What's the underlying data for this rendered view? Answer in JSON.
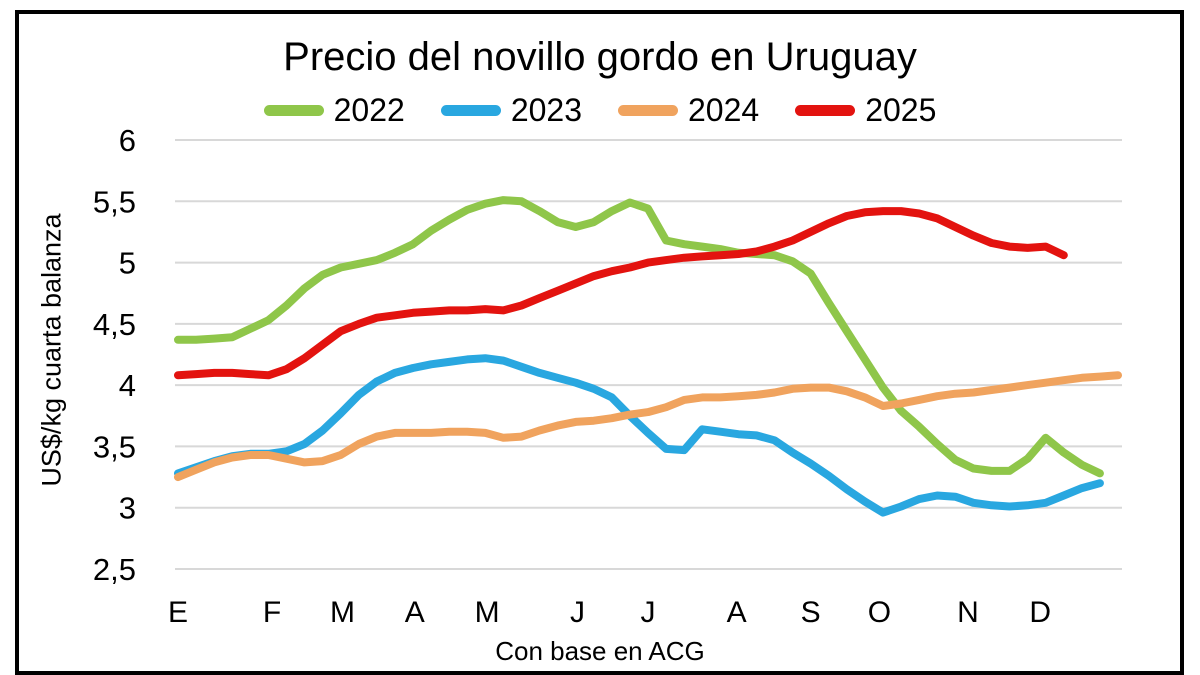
{
  "colors": {
    "background": "#ffffff",
    "frame_border": "#000000",
    "gridline": "#d8d8d8",
    "text": "#000000"
  },
  "chart_data": {
    "type": "line",
    "title": "Precio del novillo gordo en Uruguay",
    "ylabel": "US$/kg cuarta balanza",
    "xlabel": "Con base en ACG",
    "legend_position": "top",
    "grid": true,
    "x_unit": "week_of_year",
    "ylim": [
      2.5,
      6
    ],
    "y_ticks": [
      {
        "label": "6",
        "value": 6
      },
      {
        "label": "5,5",
        "value": 5.5
      },
      {
        "label": "5",
        "value": 5
      },
      {
        "label": "4,5",
        "value": 4.5
      },
      {
        "label": "4",
        "value": 4
      },
      {
        "label": "3,5",
        "value": 3.5
      },
      {
        "label": "3",
        "value": 3
      },
      {
        "label": "2,5",
        "value": 2.5
      }
    ],
    "x_ticks": [
      {
        "label": "E",
        "week": 0
      },
      {
        "label": "F",
        "week": 5.2
      },
      {
        "label": "M",
        "week": 9.1
      },
      {
        "label": "A",
        "week": 13.1
      },
      {
        "label": "M",
        "week": 17.1
      },
      {
        "label": "J",
        "week": 22.1
      },
      {
        "label": "J",
        "week": 26.0
      },
      {
        "label": "A",
        "week": 30.9
      },
      {
        "label": "S",
        "week": 35.0
      },
      {
        "label": "O",
        "week": 38.8
      },
      {
        "label": "N",
        "week": 43.7
      },
      {
        "label": "D",
        "week": 47.7
      }
    ],
    "series": [
      {
        "name": "2022",
        "color": "#8fc64a",
        "start_week": 0,
        "values": [
          4.37,
          4.37,
          4.38,
          4.39,
          4.46,
          4.53,
          4.65,
          4.79,
          4.9,
          4.96,
          4.99,
          5.02,
          5.08,
          5.15,
          5.26,
          5.35,
          5.43,
          5.48,
          5.51,
          5.5,
          5.42,
          5.33,
          5.29,
          5.33,
          5.42,
          5.49,
          5.44,
          5.18,
          5.15,
          5.13,
          5.11,
          5.08,
          5.07,
          5.06,
          5.01,
          4.91,
          4.67,
          4.44,
          4.21,
          3.98,
          3.79,
          3.66,
          3.52,
          3.39,
          3.32,
          3.3,
          3.3,
          3.4,
          3.57,
          3.45,
          3.35,
          3.28
        ]
      },
      {
        "name": "2023",
        "color": "#29a7e0",
        "start_week": 0,
        "values": [
          3.28,
          3.33,
          3.38,
          3.42,
          3.44,
          3.44,
          3.46,
          3.52,
          3.63,
          3.77,
          3.92,
          4.03,
          4.1,
          4.14,
          4.17,
          4.19,
          4.21,
          4.22,
          4.2,
          4.15,
          4.1,
          4.06,
          4.02,
          3.97,
          3.9,
          3.75,
          3.61,
          3.48,
          3.47,
          3.64,
          3.62,
          3.6,
          3.59,
          3.55,
          3.45,
          3.36,
          3.26,
          3.15,
          3.05,
          2.96,
          3.01,
          3.07,
          3.1,
          3.09,
          3.04,
          3.02,
          3.01,
          3.02,
          3.04,
          3.1,
          3.16,
          3.2
        ]
      },
      {
        "name": "2024",
        "color": "#f0a35e",
        "start_week": 0,
        "values": [
          3.25,
          3.31,
          3.37,
          3.41,
          3.43,
          3.43,
          3.4,
          3.37,
          3.38,
          3.43,
          3.52,
          3.58,
          3.61,
          3.61,
          3.61,
          3.62,
          3.62,
          3.61,
          3.57,
          3.58,
          3.63,
          3.67,
          3.7,
          3.71,
          3.73,
          3.76,
          3.78,
          3.82,
          3.88,
          3.9,
          3.9,
          3.91,
          3.92,
          3.94,
          3.97,
          3.98,
          3.98,
          3.95,
          3.9,
          3.83,
          3.85,
          3.88,
          3.91,
          3.93,
          3.94,
          3.96,
          3.98,
          4.0,
          4.02,
          4.04,
          4.06,
          4.07,
          4.08
        ]
      },
      {
        "name": "2025",
        "color": "#e3130f",
        "start_week": 0,
        "values": [
          4.08,
          4.09,
          4.1,
          4.1,
          4.09,
          4.08,
          4.13,
          4.22,
          4.33,
          4.44,
          4.5,
          4.55,
          4.57,
          4.59,
          4.6,
          4.61,
          4.61,
          4.62,
          4.61,
          4.65,
          4.71,
          4.77,
          4.83,
          4.89,
          4.93,
          4.96,
          5.0,
          5.02,
          5.04,
          5.05,
          5.06,
          5.07,
          5.09,
          5.13,
          5.18,
          5.25,
          5.32,
          5.38,
          5.41,
          5.42,
          5.42,
          5.4,
          5.36,
          5.29,
          5.22,
          5.16,
          5.13,
          5.12,
          5.13,
          5.06
        ]
      }
    ]
  }
}
